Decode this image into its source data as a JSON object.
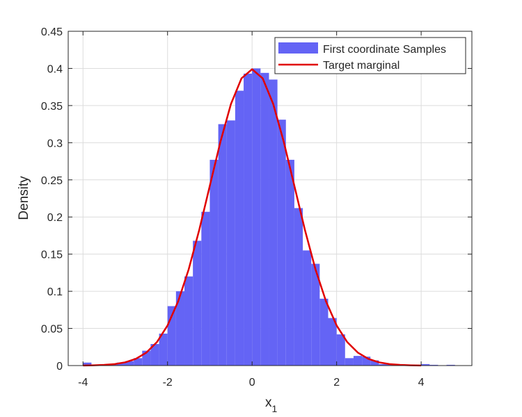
{
  "chart_data": {
    "type": "bar",
    "subtype": "histogram-with-density-curve",
    "title": "",
    "xlabel": "x",
    "xlabel_subscript": "1",
    "ylabel": "Density",
    "xlim": [
      -4.35,
      5.2
    ],
    "ylim": [
      0,
      0.45
    ],
    "xticks": [
      -4,
      -2,
      0,
      2,
      4
    ],
    "xtick_labels": [
      "-4",
      "-2",
      "0",
      "2",
      "4"
    ],
    "yticks": [
      0,
      0.05,
      0.1,
      0.15,
      0.2,
      0.25,
      0.3,
      0.35,
      0.4,
      0.45
    ],
    "ytick_labels": [
      "0",
      "0.05",
      "0.1",
      "0.15",
      "0.2",
      "0.25",
      "0.3",
      "0.35",
      "0.4",
      "0.45"
    ],
    "grid": true,
    "legend_position": "top-right",
    "legend": [
      {
        "label": "First coordinate Samples",
        "kind": "patch"
      },
      {
        "label": "Target marginal",
        "kind": "line"
      }
    ],
    "histogram": {
      "name": "First coordinate Samples",
      "color": "#6464f5",
      "bin_width": 0.2,
      "bins": [
        {
          "x0": -4.0,
          "x1": -3.8,
          "value": 0.004
        },
        {
          "x0": -3.8,
          "x1": -3.6,
          "value": 0.0
        },
        {
          "x0": -3.6,
          "x1": -3.4,
          "value": 0.001
        },
        {
          "x0": -3.4,
          "x1": -3.2,
          "value": 0.002
        },
        {
          "x0": -3.2,
          "x1": -3.0,
          "value": 0.004
        },
        {
          "x0": -3.0,
          "x1": -2.8,
          "value": 0.006
        },
        {
          "x0": -2.8,
          "x1": -2.6,
          "value": 0.01
        },
        {
          "x0": -2.6,
          "x1": -2.4,
          "value": 0.02
        },
        {
          "x0": -2.4,
          "x1": -2.2,
          "value": 0.029
        },
        {
          "x0": -2.2,
          "x1": -2.0,
          "value": 0.043
        },
        {
          "x0": -2.0,
          "x1": -1.8,
          "value": 0.08
        },
        {
          "x0": -1.8,
          "x1": -1.6,
          "value": 0.1
        },
        {
          "x0": -1.6,
          "x1": -1.4,
          "value": 0.12
        },
        {
          "x0": -1.4,
          "x1": -1.2,
          "value": 0.168
        },
        {
          "x0": -1.2,
          "x1": -1.0,
          "value": 0.207
        },
        {
          "x0": -1.0,
          "x1": -0.8,
          "value": 0.277
        },
        {
          "x0": -0.8,
          "x1": -0.6,
          "value": 0.325
        },
        {
          "x0": -0.6,
          "x1": -0.4,
          "value": 0.33
        },
        {
          "x0": -0.4,
          "x1": -0.2,
          "value": 0.37
        },
        {
          "x0": -0.2,
          "x1": 0.0,
          "value": 0.393
        },
        {
          "x0": 0.0,
          "x1": 0.2,
          "value": 0.4
        },
        {
          "x0": 0.2,
          "x1": 0.4,
          "value": 0.394
        },
        {
          "x0": 0.4,
          "x1": 0.6,
          "value": 0.385
        },
        {
          "x0": 0.6,
          "x1": 0.8,
          "value": 0.331
        },
        {
          "x0": 0.8,
          "x1": 1.0,
          "value": 0.277
        },
        {
          "x0": 1.0,
          "x1": 1.2,
          "value": 0.212
        },
        {
          "x0": 1.2,
          "x1": 1.4,
          "value": 0.155
        },
        {
          "x0": 1.4,
          "x1": 1.6,
          "value": 0.137
        },
        {
          "x0": 1.6,
          "x1": 1.8,
          "value": 0.09
        },
        {
          "x0": 1.8,
          "x1": 2.0,
          "value": 0.064
        },
        {
          "x0": 2.0,
          "x1": 2.2,
          "value": 0.042
        },
        {
          "x0": 2.2,
          "x1": 2.4,
          "value": 0.01
        },
        {
          "x0": 2.4,
          "x1": 2.6,
          "value": 0.013
        },
        {
          "x0": 2.6,
          "x1": 2.8,
          "value": 0.012
        },
        {
          "x0": 2.8,
          "x1": 3.0,
          "value": 0.007
        },
        {
          "x0": 3.0,
          "x1": 3.2,
          "value": 0.002
        },
        {
          "x0": 3.2,
          "x1": 3.4,
          "value": 0.002
        },
        {
          "x0": 3.4,
          "x1": 3.6,
          "value": 0.001
        },
        {
          "x0": 3.6,
          "x1": 3.8,
          "value": 0.0
        },
        {
          "x0": 3.8,
          "x1": 4.0,
          "value": 0.0
        },
        {
          "x0": 4.0,
          "x1": 4.2,
          "value": 0.002
        },
        {
          "x0": 4.2,
          "x1": 4.4,
          "value": 0.001
        },
        {
          "x0": 4.4,
          "x1": 4.6,
          "value": 0.0
        },
        {
          "x0": 4.6,
          "x1": 4.8,
          "value": 0.001
        },
        {
          "x0": 4.8,
          "x1": 5.0,
          "value": 0.0
        }
      ]
    },
    "curve": {
      "name": "Target marginal",
      "color": "#e00000",
      "x": [
        -4.0,
        -3.75,
        -3.5,
        -3.25,
        -3.0,
        -2.75,
        -2.5,
        -2.25,
        -2.0,
        -1.75,
        -1.5,
        -1.25,
        -1.0,
        -0.75,
        -0.5,
        -0.25,
        0.0,
        0.25,
        0.5,
        0.75,
        1.0,
        1.25,
        1.5,
        1.75,
        2.0,
        2.25,
        2.5,
        2.75,
        3.0,
        3.25,
        3.5,
        3.75,
        4.0
      ],
      "y": [
        0.0001,
        0.0004,
        0.0009,
        0.002,
        0.0044,
        0.0091,
        0.0175,
        0.0317,
        0.054,
        0.0863,
        0.1295,
        0.1826,
        0.242,
        0.3011,
        0.3521,
        0.3867,
        0.3989,
        0.3867,
        0.3521,
        0.3011,
        0.242,
        0.1826,
        0.1295,
        0.0863,
        0.054,
        0.0317,
        0.0175,
        0.0091,
        0.0044,
        0.002,
        0.0009,
        0.0004,
        0.0001
      ]
    }
  }
}
